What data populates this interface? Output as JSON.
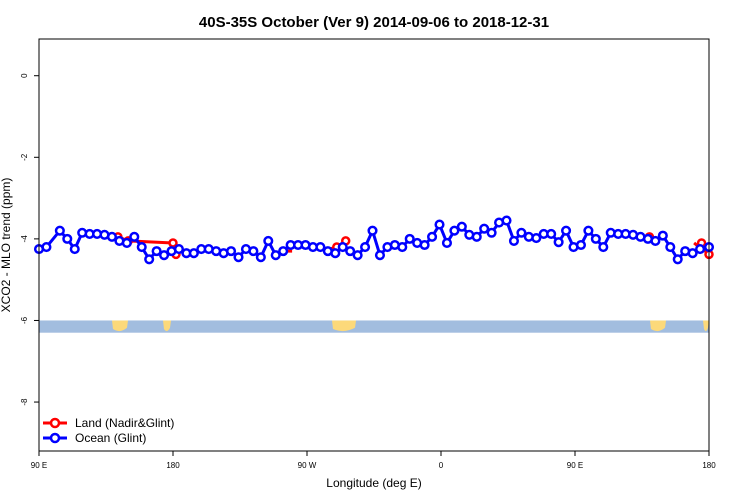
{
  "chart_data": {
    "type": "line",
    "title": "40S-35S October (Ver 9)   2014-09-06 to 2018-12-31",
    "xlabel": "Longitude (deg E)",
    "ylabel": "XCO2 - MLO trend (ppm)",
    "x_ticks": [
      {
        "value": 90,
        "label": "90 E"
      },
      {
        "value": 180,
        "label": "180"
      },
      {
        "value": 270,
        "label": "90 W"
      },
      {
        "value": 360,
        "label": "0"
      },
      {
        "value": 450,
        "label": "90 E"
      },
      {
        "value": 540,
        "label": "180"
      }
    ],
    "y_ticks": [
      {
        "value": 0,
        "label": "0"
      },
      {
        "value": -2,
        "label": "-2"
      },
      {
        "value": -4,
        "label": "-4"
      },
      {
        "value": -6,
        "label": "-6"
      },
      {
        "value": -8,
        "label": "-8"
      }
    ],
    "xlim": [
      90,
      540
    ],
    "ylim": [
      -9.2,
      0.9
    ],
    "legend_position": "bottom-left",
    "land_band": {
      "y_top": -6.0,
      "y_bottom": -6.3,
      "ocean_color": "#a2bddf",
      "land_color": "#fcd97a"
    },
    "series": [
      {
        "name": "Land (Nadir&Glint)",
        "color": "#ff0000",
        "segments": [
          [
            [
              143,
              -3.95
            ],
            [
              150,
              -4.05
            ],
            [
              180,
              -4.1
            ]
          ],
          [
            [
              180,
              -4.1
            ],
            [
              182,
              -4.38
            ]
          ],
          [
            [
              256,
              -4.3
            ],
            [
              260,
              -4.3
            ]
          ],
          [
            [
              285,
              -4.25
            ],
            [
              290,
              -4.2
            ],
            [
              296,
              -4.05
            ]
          ],
          [
            [
              530,
              -4.1
            ],
            [
              535,
              -4.25
            ],
            [
              540,
              -4.35
            ]
          ]
        ],
        "markers": [
          [
            143,
            -3.95
          ],
          [
            150,
            -4.05
          ],
          [
            180,
            -4.1
          ],
          [
            182,
            -4.38
          ],
          [
            290,
            -4.2
          ],
          [
            296,
            -4.05
          ],
          [
            500,
            -3.95
          ],
          [
            535,
            -4.1
          ],
          [
            540,
            -4.38
          ]
        ]
      },
      {
        "name": "Ocean (Glint)",
        "color": "#0000ff",
        "points": [
          [
            90,
            -4.25
          ],
          [
            95,
            -4.2
          ],
          [
            104,
            -3.8
          ],
          [
            109,
            -4.0
          ],
          [
            114,
            -4.25
          ],
          [
            119,
            -3.85
          ],
          [
            124,
            -3.88
          ],
          [
            129,
            -3.88
          ],
          [
            134,
            -3.9
          ],
          [
            139,
            -3.95
          ],
          [
            144,
            -4.05
          ],
          [
            149,
            -4.1
          ],
          [
            154,
            -3.95
          ],
          [
            159,
            -4.2
          ],
          [
            164,
            -4.5
          ],
          [
            169,
            -4.3
          ],
          [
            174,
            -4.4
          ],
          [
            179,
            -4.3
          ],
          [
            184,
            -4.25
          ],
          [
            189,
            -4.35
          ],
          [
            194,
            -4.35
          ],
          [
            199,
            -4.25
          ],
          [
            204,
            -4.25
          ],
          [
            209,
            -4.3
          ],
          [
            214,
            -4.35
          ],
          [
            219,
            -4.3
          ],
          [
            224,
            -4.45
          ],
          [
            229,
            -4.25
          ],
          [
            234,
            -4.3
          ],
          [
            239,
            -4.45
          ],
          [
            244,
            -4.05
          ],
          [
            249,
            -4.4
          ],
          [
            254,
            -4.3
          ],
          [
            259,
            -4.15
          ],
          [
            264,
            -4.15
          ],
          [
            269,
            -4.15
          ],
          [
            274,
            -4.2
          ],
          [
            279,
            -4.2
          ],
          [
            284,
            -4.3
          ],
          [
            289,
            -4.35
          ],
          [
            294,
            -4.2
          ],
          [
            299,
            -4.3
          ],
          [
            304,
            -4.4
          ],
          [
            309,
            -4.2
          ],
          [
            314,
            -3.8
          ],
          [
            319,
            -4.4
          ],
          [
            324,
            -4.2
          ],
          [
            329,
            -4.15
          ],
          [
            334,
            -4.2
          ],
          [
            339,
            -4.0
          ],
          [
            344,
            -4.1
          ],
          [
            349,
            -4.15
          ],
          [
            354,
            -3.95
          ],
          [
            359,
            -3.65
          ],
          [
            364,
            -4.1
          ],
          [
            369,
            -3.8
          ],
          [
            374,
            -3.7
          ],
          [
            379,
            -3.9
          ],
          [
            384,
            -3.95
          ],
          [
            389,
            -3.75
          ],
          [
            394,
            -3.85
          ],
          [
            399,
            -3.6
          ],
          [
            404,
            -3.55
          ],
          [
            409,
            -4.05
          ],
          [
            414,
            -3.85
          ],
          [
            419,
            -3.95
          ],
          [
            424,
            -3.98
          ],
          [
            429,
            -3.88
          ],
          [
            434,
            -3.88
          ],
          [
            439,
            -4.08
          ],
          [
            444,
            -3.8
          ],
          [
            449,
            -4.2
          ],
          [
            454,
            -4.15
          ],
          [
            459,
            -3.8
          ],
          [
            464,
            -4.0
          ],
          [
            469,
            -4.2
          ],
          [
            474,
            -3.85
          ],
          [
            479,
            -3.88
          ],
          [
            484,
            -3.88
          ],
          [
            489,
            -3.9
          ],
          [
            494,
            -3.95
          ],
          [
            499,
            -4.0
          ],
          [
            504,
            -4.05
          ],
          [
            509,
            -3.92
          ],
          [
            514,
            -4.2
          ],
          [
            519,
            -4.5
          ],
          [
            524,
            -4.3
          ],
          [
            529,
            -4.35
          ],
          [
            534,
            -4.25
          ],
          [
            540,
            -4.2
          ]
        ]
      }
    ]
  }
}
